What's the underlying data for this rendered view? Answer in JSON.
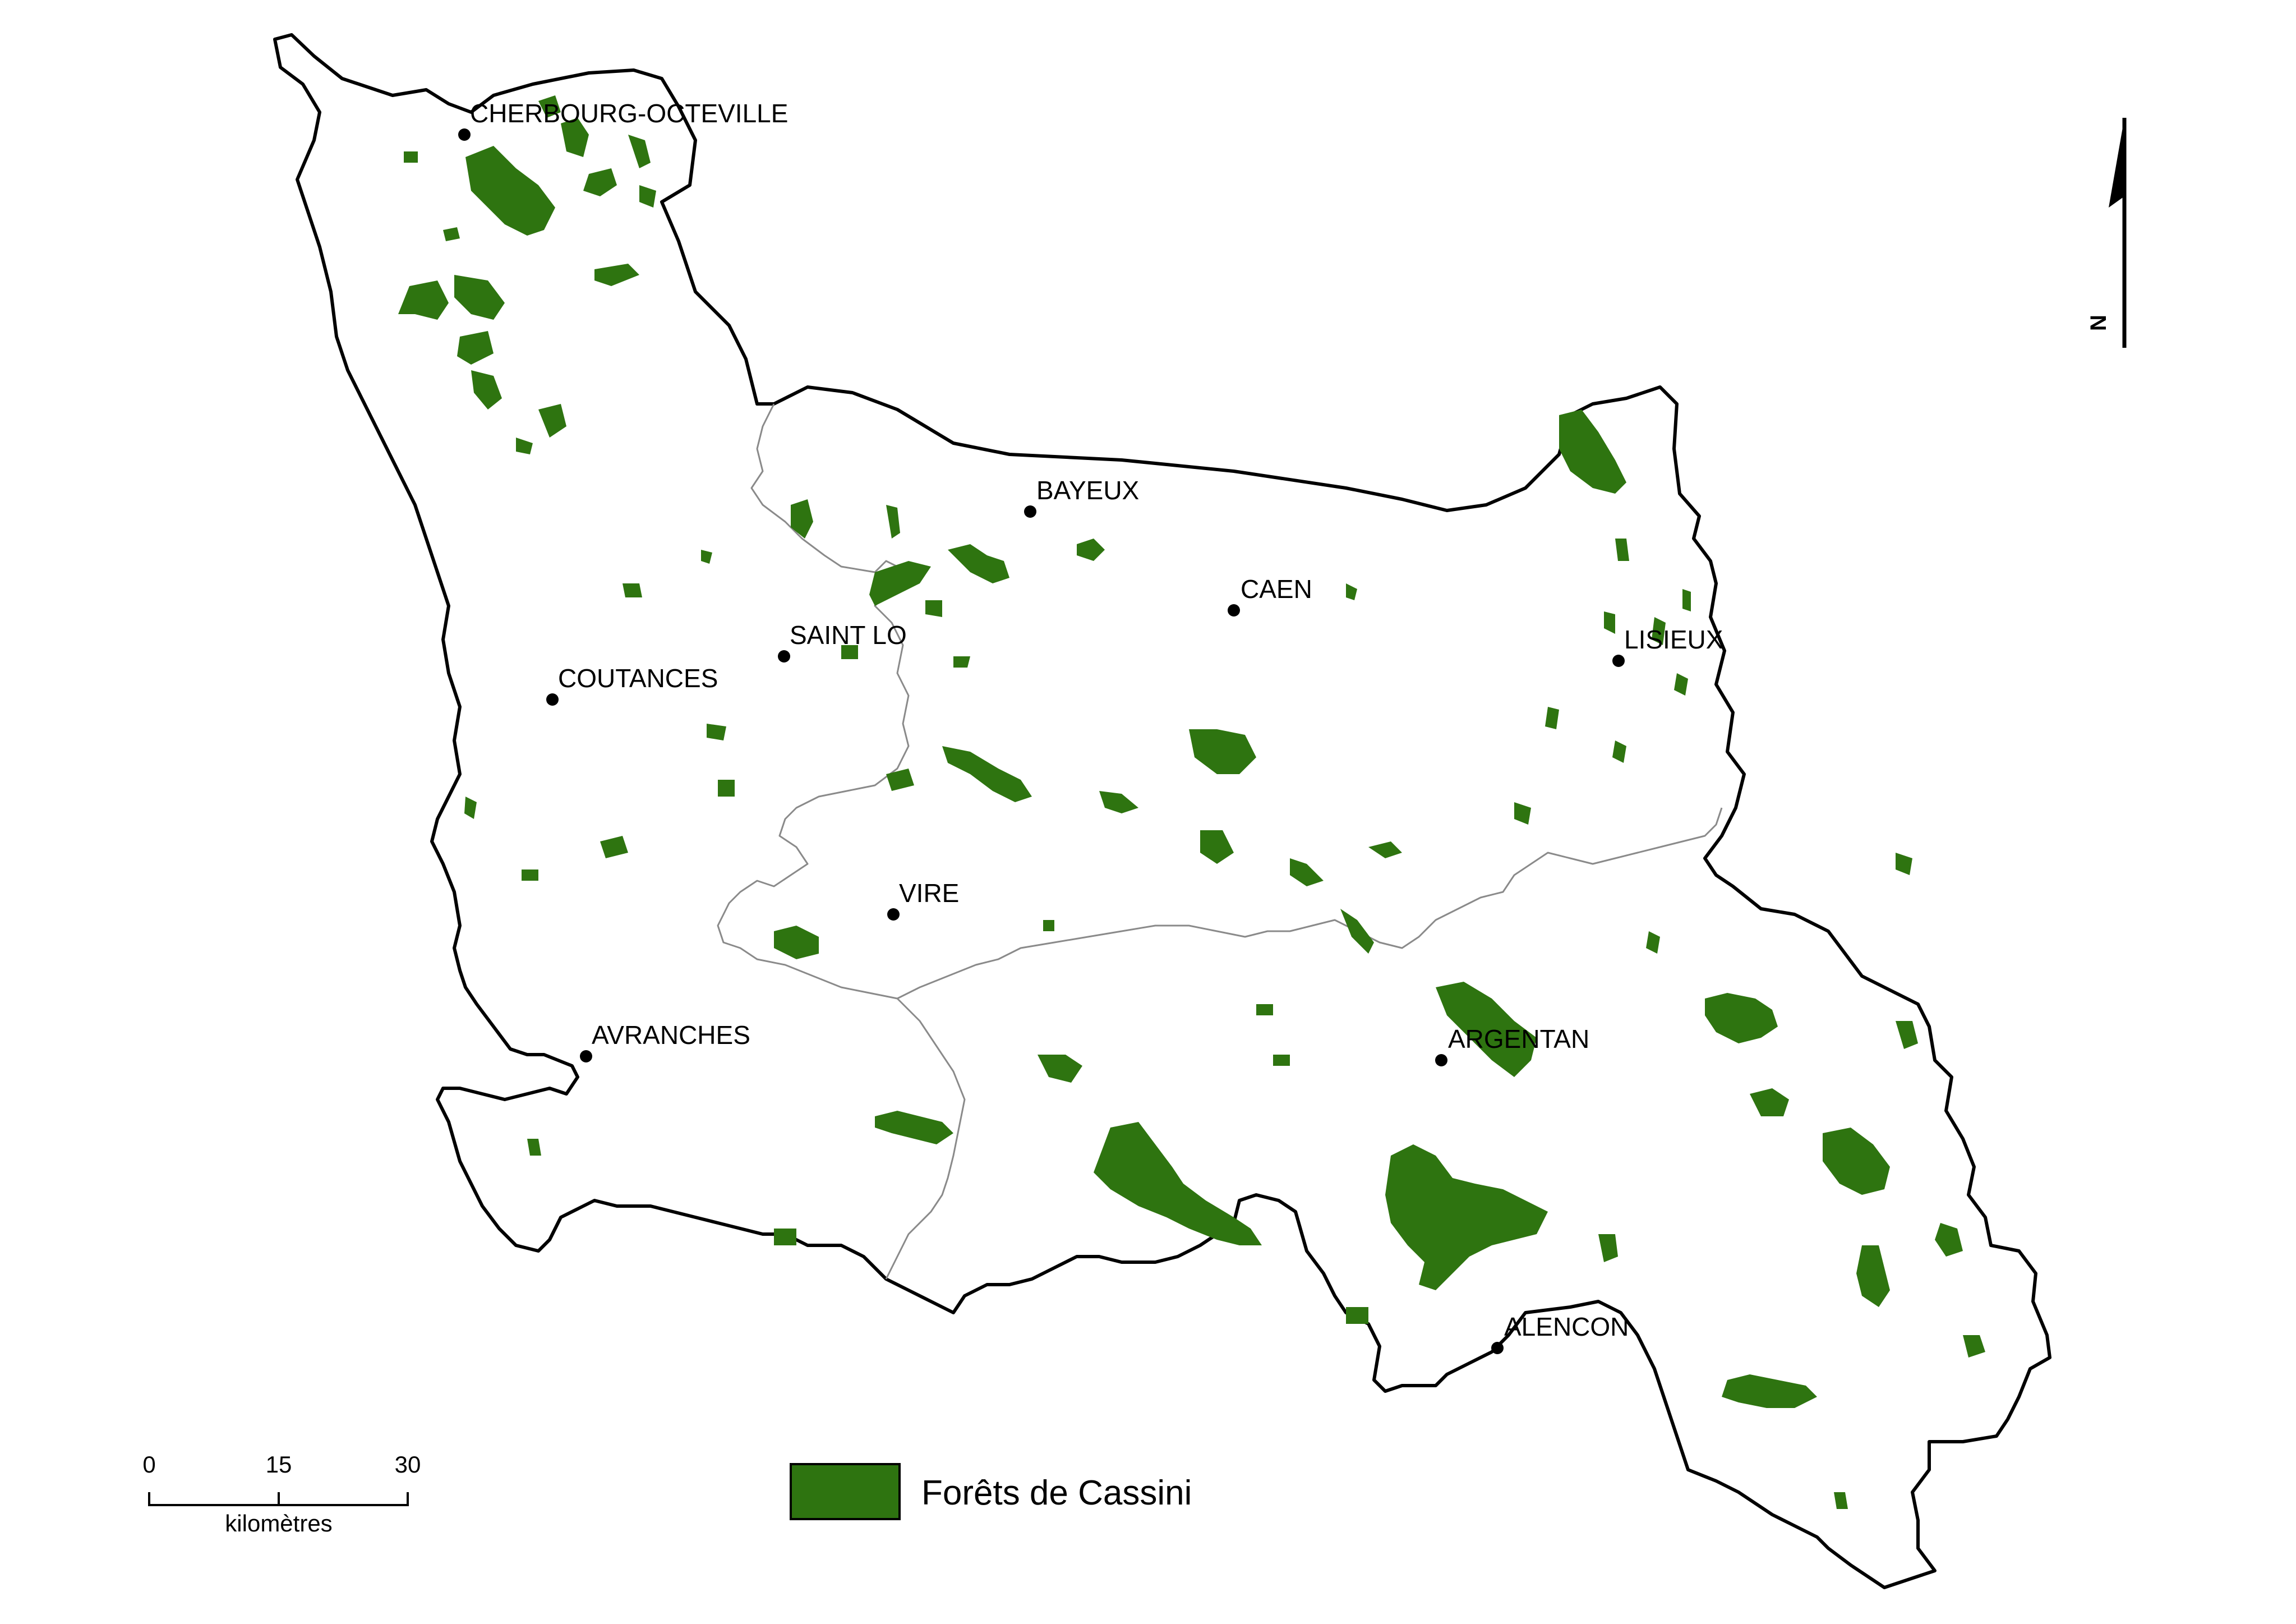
{
  "colors": {
    "forest": "#2e7410",
    "outline": "#000000",
    "internal_border": "#8a8a8a",
    "background": "#ffffff"
  },
  "cities": [
    {
      "id": "cherbourg",
      "name": "CHERBOURG-OCTEVILLE"
    },
    {
      "id": "bayeux",
      "name": "BAYEUX"
    },
    {
      "id": "caen",
      "name": "CAEN"
    },
    {
      "id": "saint-lo",
      "name": "SAINT LO"
    },
    {
      "id": "lisieux",
      "name": "LISIEUX"
    },
    {
      "id": "coutances",
      "name": "COUTANCES"
    },
    {
      "id": "vire",
      "name": "VIRE"
    },
    {
      "id": "argentan",
      "name": "ARGENTAN"
    },
    {
      "id": "avranches",
      "name": "AVRANCHES"
    },
    {
      "id": "alencon",
      "name": "ALENCON"
    }
  ],
  "legend": {
    "label": "Forêts de Cassini"
  },
  "scale_bar": {
    "ticks": [
      "0",
      "15",
      "30"
    ],
    "unit": "kilomètres"
  },
  "north_arrow": {
    "label": "N",
    "icon": "north-arrow-icon"
  }
}
